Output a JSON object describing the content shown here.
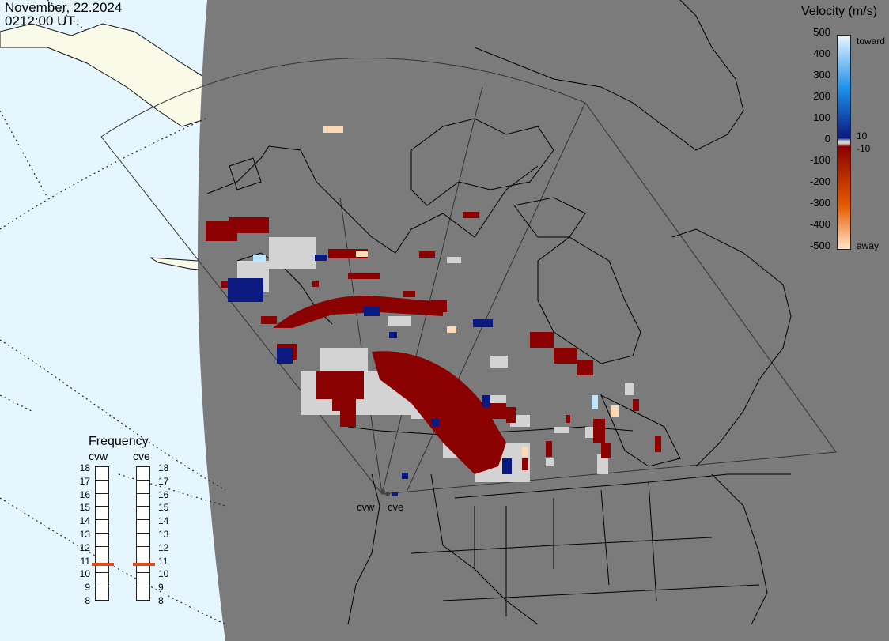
{
  "header": {
    "date": "November, 22.2024",
    "time": "0212:00 UT"
  },
  "radars": [
    "cvw",
    "cve"
  ],
  "colorbar": {
    "title": "Velocity (m/s)",
    "ticks": [
      "500",
      "400",
      "300",
      "200",
      "100",
      "0",
      "-100",
      "-200",
      "-300",
      "-400",
      "-500"
    ],
    "toward_label": "toward",
    "away_label": "away",
    "zero_band": [
      "10",
      "-10"
    ],
    "colors": {
      "toward_fast": "#e8f6ff",
      "toward": "#1d8fe8",
      "toward_slow": "#0a1a80",
      "zero": "#d3d3d3",
      "away_slow": "#8b0000",
      "away": "#e65c00",
      "away_fast": "#ffe6cc"
    }
  },
  "frequency": {
    "title": "Frequency",
    "scale": [
      "18",
      "17",
      "16",
      "15",
      "14",
      "13",
      "12",
      "11",
      "10",
      "9",
      "8"
    ],
    "current_mhz": {
      "cvw": 11,
      "cve": 11
    },
    "marker_color": "#e04a1c"
  }
}
